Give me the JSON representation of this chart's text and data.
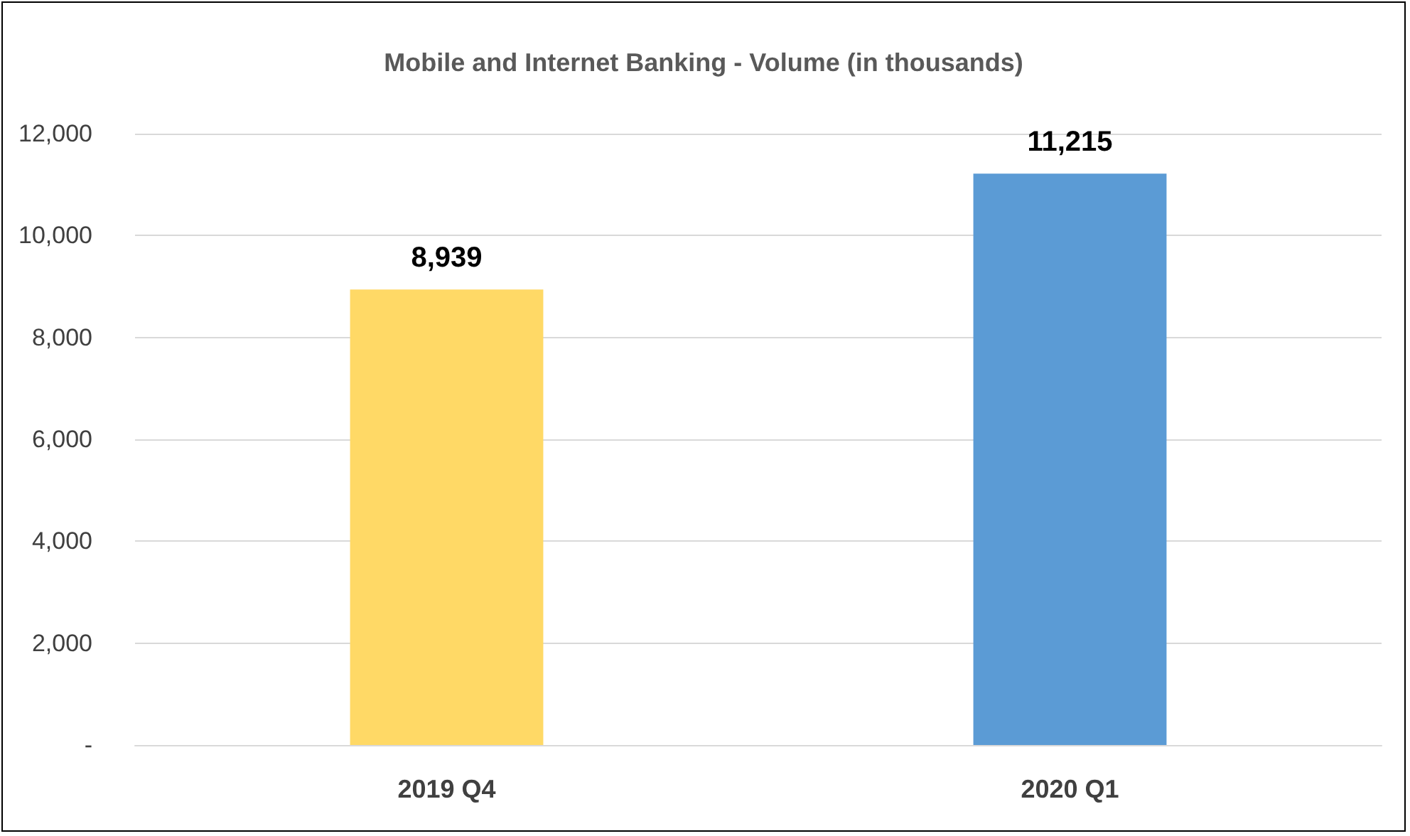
{
  "chart_data": {
    "type": "bar",
    "title": "Mobile and Internet Banking - Volume (in thousands)",
    "categories": [
      "2019 Q4",
      "2020 Q1"
    ],
    "values": [
      8939,
      11215
    ],
    "colors": [
      "#ffd966",
      "#5b9bd5"
    ],
    "value_labels": [
      "8,939",
      "11,215"
    ],
    "ylim": [
      0,
      12000
    ],
    "yticks": [
      {
        "value": 0,
        "label": "-"
      },
      {
        "value": 2000,
        "label": "2,000"
      },
      {
        "value": 4000,
        "label": "4,000"
      },
      {
        "value": 6000,
        "label": "6,000"
      },
      {
        "value": 8000,
        "label": "8,000"
      },
      {
        "value": 10000,
        "label": "10,000"
      },
      {
        "value": 12000,
        "label": "12,000"
      }
    ],
    "grid": "y"
  }
}
